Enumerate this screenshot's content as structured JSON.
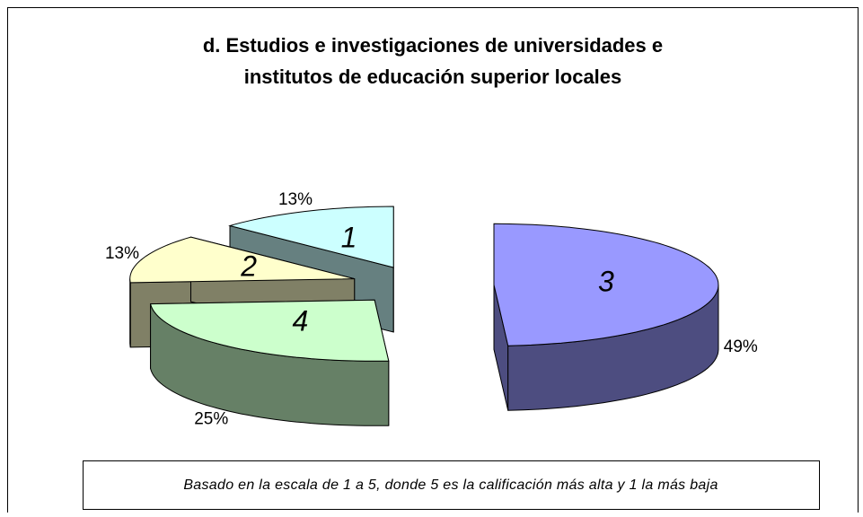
{
  "chart_data": {
    "type": "pie",
    "title": [
      "d. Estudios e investigaciones de universidades e",
      "institutos de educación superior locales"
    ],
    "categories": [
      "3",
      "4",
      "2",
      "1"
    ],
    "values": [
      49,
      25,
      13,
      13
    ],
    "value_labels": [
      "49%",
      "25%",
      "13%",
      "13%"
    ],
    "colors": [
      "#9999ff",
      "#ccffcc",
      "#ffffcc",
      "#ccffff"
    ],
    "three_d": true,
    "exploded": true,
    "note": "Basado en la escala de 1 a 5, donde 5 es la calificación más alta y 1 la más baja"
  }
}
